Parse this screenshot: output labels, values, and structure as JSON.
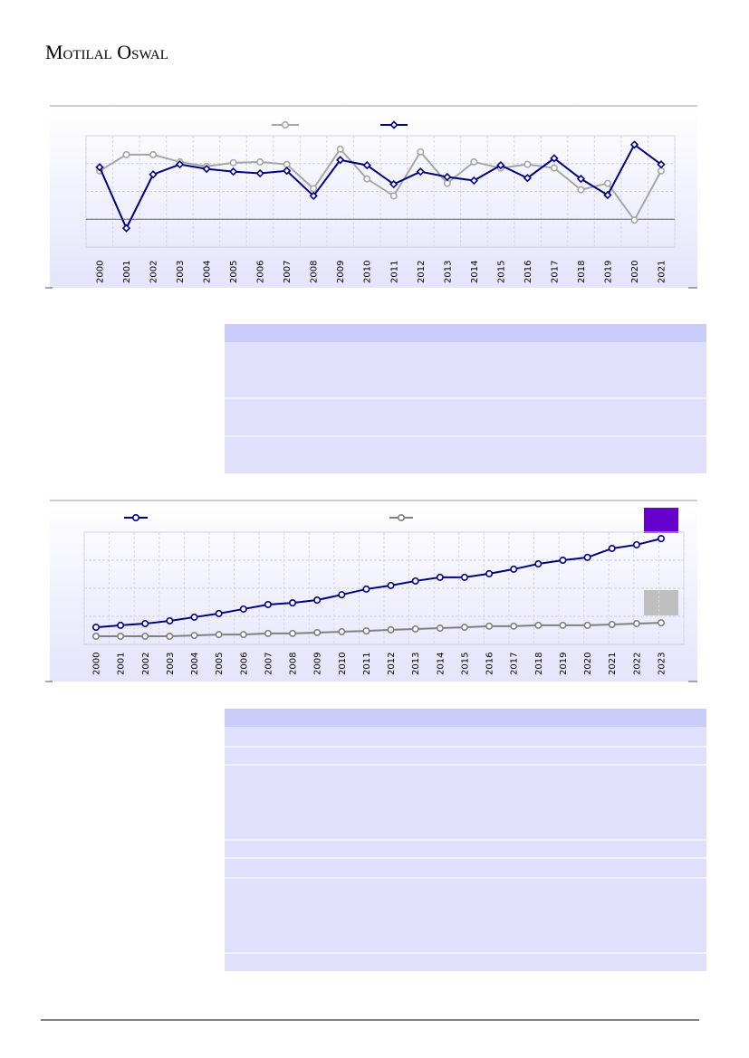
{
  "header": {
    "logo": "Motilal Oswal"
  },
  "chart_data": [
    {
      "type": "line",
      "categories": [
        "2000",
        "2001",
        "2002",
        "2003",
        "2004",
        "2005",
        "2006",
        "2007",
        "2008",
        "2009",
        "2010",
        "2011",
        "2012",
        "2013",
        "2014",
        "2015",
        "2016",
        "2017",
        "2018",
        "2019",
        "2020",
        "2021"
      ],
      "series": [
        {
          "color": "#a6a6a6",
          "marker": "circle",
          "values": [
            1.74,
            2.32,
            2.32,
            2.06,
            1.9,
            2.03,
            2.06,
            1.97,
            1.1,
            2.52,
            1.45,
            0.84,
            2.42,
            1.29,
            2.06,
            1.84,
            1.97,
            1.84,
            1.06,
            1.29,
            -0.03,
            1.74
          ]
        },
        {
          "color": "#000080",
          "marker": "diamond",
          "values": [
            1.87,
            -0.32,
            1.61,
            1.97,
            1.81,
            1.71,
            1.65,
            1.74,
            0.84,
            2.13,
            1.94,
            1.26,
            1.71,
            1.52,
            1.39,
            1.94,
            1.48,
            2.19,
            1.45,
            0.87,
            2.68,
            1.97
          ]
        }
      ],
      "ylim": [
        -1,
        3
      ],
      "grid": true
    },
    {
      "type": "line",
      "categories": [
        "2000",
        "2001",
        "2002",
        "2003",
        "2004",
        "2005",
        "2006",
        "2007",
        "2008",
        "2009",
        "2010",
        "2011",
        "2012",
        "2013",
        "2014",
        "2015",
        "2016",
        "2017",
        "2018",
        "2019",
        "2020",
        "2021",
        "2022",
        "2023"
      ],
      "series": [
        {
          "color": "#000080",
          "marker": "circle",
          "values": [
            0.61,
            0.68,
            0.74,
            0.84,
            0.97,
            1.1,
            1.26,
            1.42,
            1.48,
            1.58,
            1.77,
            1.97,
            2.1,
            2.26,
            2.39,
            2.39,
            2.52,
            2.68,
            2.87,
            3.0,
            3.1,
            3.42,
            3.55,
            3.77
          ]
        },
        {
          "color": "#808080",
          "marker": "circle",
          "values": [
            0.29,
            0.29,
            0.29,
            0.29,
            0.32,
            0.35,
            0.35,
            0.39,
            0.39,
            0.42,
            0.45,
            0.48,
            0.52,
            0.55,
            0.58,
            0.61,
            0.65,
            0.65,
            0.68,
            0.68,
            0.68,
            0.71,
            0.74,
            0.77
          ]
        }
      ],
      "ylim": [
        0,
        4
      ],
      "grid": true
    }
  ]
}
